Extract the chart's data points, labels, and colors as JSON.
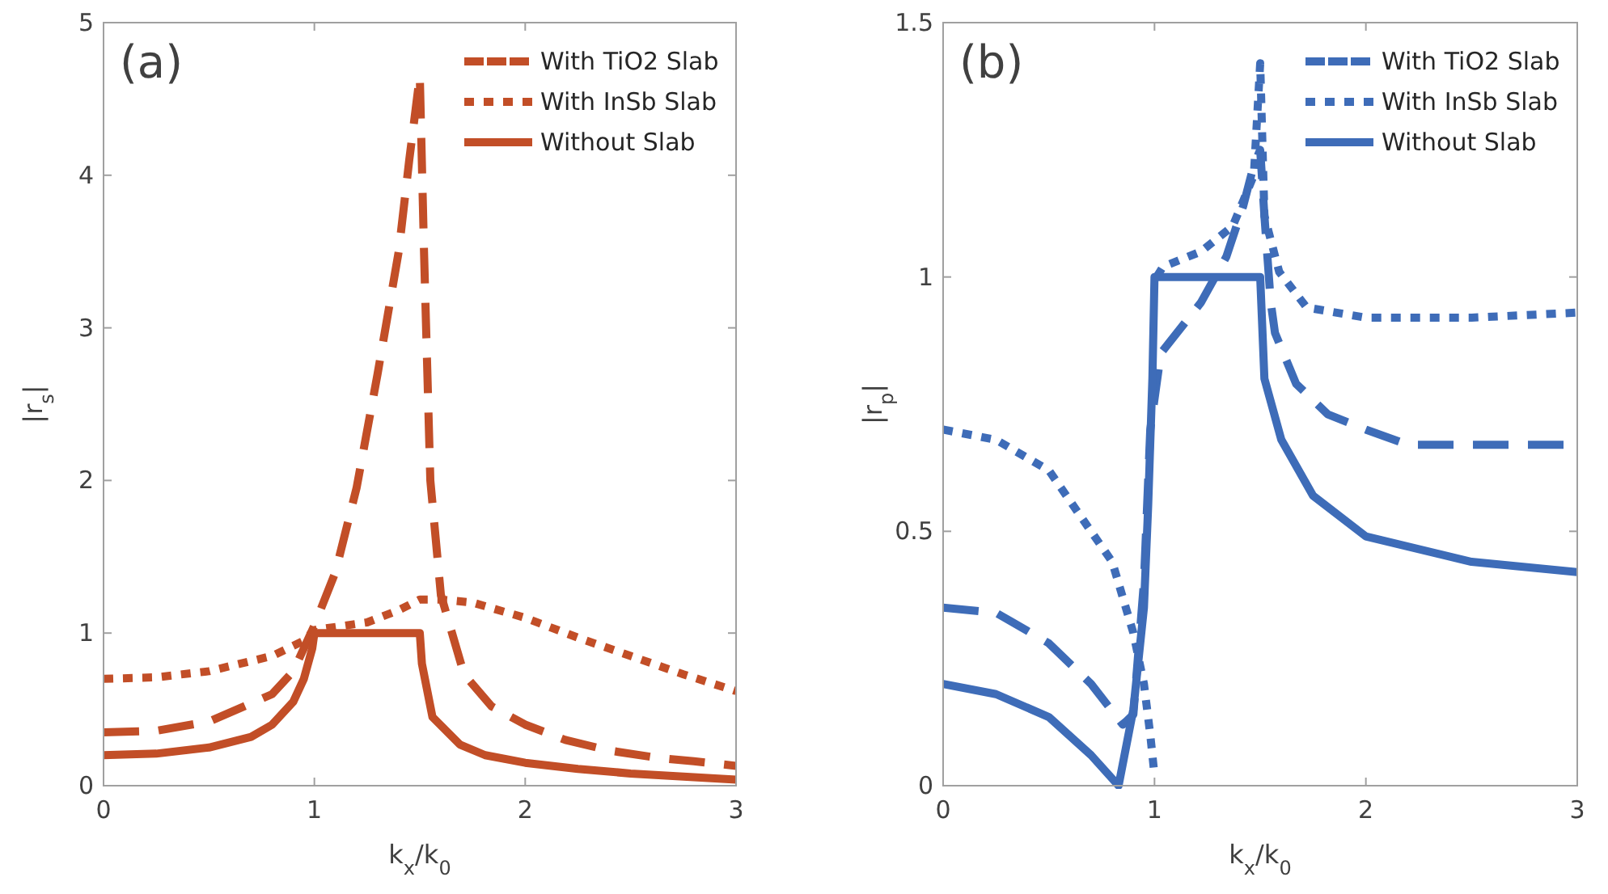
{
  "chart_data": [
    {
      "type": "line",
      "annotations": [
        "(a)"
      ],
      "xlabel": "k$_{x}$/k$_{0}$",
      "ylabel": "|r$_{s}$|",
      "xlim": [
        0,
        3
      ],
      "xticks": [
        0,
        1,
        2,
        3
      ],
      "ylim": [
        0,
        5
      ],
      "yticks": [
        0,
        1,
        2,
        3,
        4,
        5
      ],
      "grid": false,
      "legend": "top right",
      "series": [
        {
          "name": "With TiO2 Slab",
          "color": "#c24e27",
          "line_style": "dashed",
          "x": [
            0,
            0.25,
            0.5,
            0.8,
            0.9,
            1,
            1.1,
            1.2,
            1.3,
            1.4,
            1.45,
            1.5,
            1.52,
            1.55,
            1.6,
            1.71,
            1.84,
            2,
            2.19,
            2.4,
            2.64,
            2.8,
            3
          ],
          "values": [
            0.35,
            0.36,
            0.42,
            0.6,
            0.75,
            1.05,
            1.4,
            1.95,
            2.7,
            3.5,
            4.1,
            4.65,
            3.5,
            2.0,
            1.25,
            0.73,
            0.52,
            0.4,
            0.3,
            0.23,
            0.18,
            0.16,
            0.13
          ]
        },
        {
          "name": "With InSb Slab",
          "color": "#c24e27",
          "line_style": "dotted",
          "x": [
            0,
            0.25,
            0.5,
            0.8,
            0.95,
            1,
            1.25,
            1.4,
            1.5,
            1.6,
            1.75,
            2,
            2.25,
            2.5,
            2.75,
            3
          ],
          "values": [
            0.7,
            0.71,
            0.75,
            0.85,
            0.95,
            1.02,
            1.07,
            1.15,
            1.22,
            1.22,
            1.2,
            1.1,
            0.97,
            0.85,
            0.73,
            0.62
          ]
        },
        {
          "name": "Without Slab",
          "color": "#c24e27",
          "line_style": "solid",
          "x": [
            0,
            0.25,
            0.5,
            0.7,
            0.8,
            0.9,
            0.95,
            0.99,
            1,
            1.5,
            1.51,
            1.56,
            1.69,
            1.81,
            2,
            2.25,
            2.5,
            2.75,
            3
          ],
          "values": [
            0.2,
            0.21,
            0.25,
            0.32,
            0.4,
            0.55,
            0.7,
            0.9,
            1,
            1,
            0.8,
            0.45,
            0.27,
            0.2,
            0.15,
            0.11,
            0.08,
            0.06,
            0.04
          ]
        }
      ]
    },
    {
      "type": "line",
      "annotations": [
        "(b)"
      ],
      "xlabel": "k$_{x}$/k$_{0}$",
      "ylabel": "|r$_{p}$|",
      "xlim": [
        0,
        3
      ],
      "xticks": [
        0,
        1,
        2,
        3
      ],
      "ylim": [
        0,
        1.5
      ],
      "yticks": [
        0,
        0.5,
        1,
        1.5
      ],
      "grid": false,
      "legend": "top right",
      "series": [
        {
          "name": "With TiO2 Slab",
          "color": "#3e6cb8",
          "line_style": "dashed",
          "x": [
            0,
            0.25,
            0.5,
            0.7,
            0.85,
            0.9,
            0.95,
            0.98,
            1.03,
            1.22,
            1.34,
            1.42,
            1.47,
            1.5,
            1.52,
            1.55,
            1.57,
            1.67,
            1.82,
            2,
            2.2,
            2.5,
            2.77,
            3
          ],
          "values": [
            0.35,
            0.34,
            0.28,
            0.2,
            0.12,
            0.14,
            0.4,
            0.7,
            0.85,
            0.95,
            1.04,
            1.14,
            1.22,
            1.25,
            1.12,
            0.95,
            0.89,
            0.79,
            0.73,
            0.7,
            0.67,
            0.67,
            0.67,
            0.67
          ]
        },
        {
          "name": "With InSb Slab",
          "color": "#3e6cb8",
          "line_style": "dotted",
          "x": [
            0,
            0.25,
            0.5,
            0.7,
            0.8,
            0.9,
            0.95,
            0.98,
            1,
            1.005,
            1.01,
            1.04,
            1.22,
            1.37,
            1.47,
            1.5,
            1.52,
            1.59,
            1.72,
            2,
            2.5,
            3
          ],
          "values": [
            0.7,
            0.68,
            0.62,
            0.5,
            0.44,
            0.3,
            0.2,
            0.1,
            0.02,
            null,
            1.0,
            1.02,
            1.05,
            1.1,
            1.2,
            1.42,
            1.12,
            1.01,
            0.94,
            0.92,
            0.92,
            0.93
          ]
        },
        {
          "name": "Without Slab",
          "color": "#3e6cb8",
          "line_style": "solid",
          "x": [
            0,
            0.25,
            0.5,
            0.7,
            0.83,
            0.9,
            0.95,
            0.97,
            0.99,
            1,
            1.5,
            1.52,
            1.6,
            1.75,
            2,
            2.5,
            3
          ],
          "values": [
            0.2,
            0.18,
            0.135,
            0.06,
            0,
            0.15,
            0.35,
            0.55,
            0.8,
            1,
            1,
            0.8,
            0.68,
            0.57,
            0.49,
            0.44,
            0.42
          ]
        }
      ]
    }
  ]
}
